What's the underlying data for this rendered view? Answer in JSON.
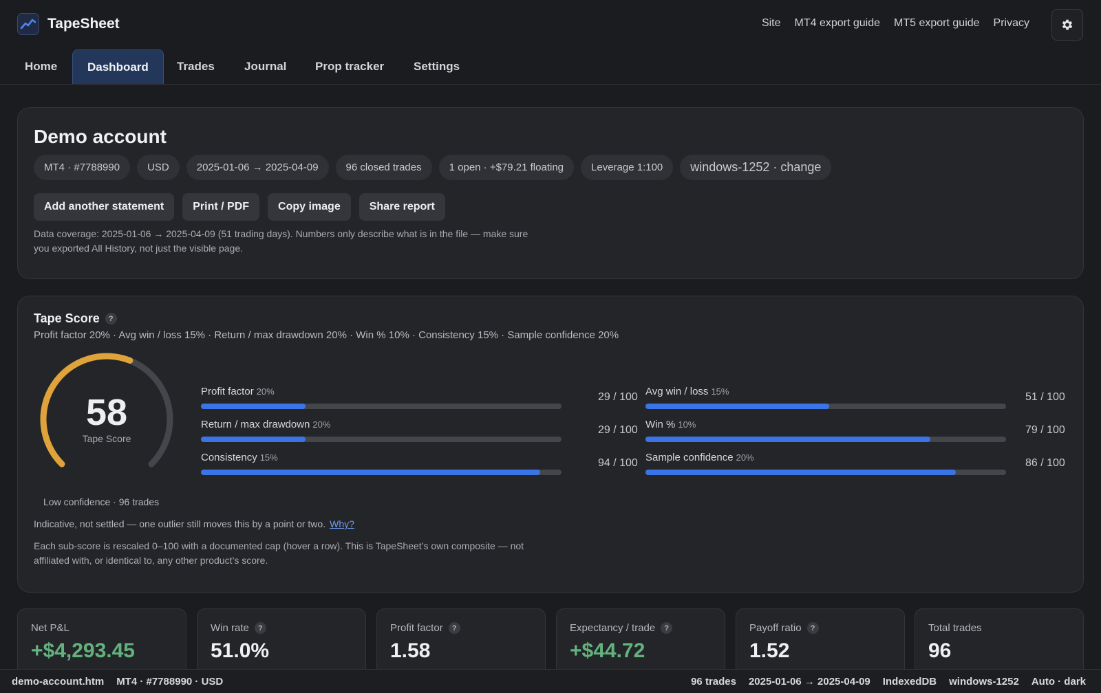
{
  "app": {
    "name": "TapeSheet",
    "logo_icon": "chart-trend-icon"
  },
  "top_links": [
    "Site",
    "MT4 export guide",
    "MT5 export guide",
    "Privacy"
  ],
  "settings_icon": "gear-icon",
  "tabs": [
    {
      "label": "Home",
      "active": false
    },
    {
      "label": "Dashboard",
      "active": true
    },
    {
      "label": "Trades",
      "active": false
    },
    {
      "label": "Journal",
      "active": false
    },
    {
      "label": "Prop tracker",
      "active": false
    },
    {
      "label": "Settings",
      "active": false
    }
  ],
  "account": {
    "title": "Demo account",
    "chips": [
      "MT4 · #7788990",
      "USD",
      "2025-01-06 → 2025-04-09",
      "96 closed trades",
      "1 open · +$79.21 floating",
      "Leverage 1:100",
      "windows-1252 · change"
    ],
    "actions": [
      "Add another statement",
      "Print / PDF",
      "Copy image",
      "Share report"
    ],
    "coverage": "Data coverage: 2025-01-06 → 2025-04-09 (51 trading days). Numbers only describe what is in the file — make sure you exported All History, not just the visible page."
  },
  "tape_score": {
    "title": "Tape Score",
    "weights": "Profit factor 20% · Avg win / loss 15% · Return / max drawdown 20% · Win % 10% · Consistency 15% · Sample confidence 20%",
    "score": "58",
    "score_value": 58,
    "score_label": "Tape Score",
    "gauge_color": "#e0a23a",
    "sub_scores": [
      {
        "name": "Profit factor",
        "weight": "20%",
        "value": "29 / 100",
        "score": 29
      },
      {
        "name": "Avg win / loss",
        "weight": "15%",
        "value": "51 / 100",
        "score": 51
      },
      {
        "name": "Return / max drawdown",
        "weight": "20%",
        "value": "29 / 100",
        "score": 29
      },
      {
        "name": "Win %",
        "weight": "10%",
        "value": "79 / 100",
        "score": 79
      },
      {
        "name": "Consistency",
        "weight": "15%",
        "value": "94 / 100",
        "score": 94
      },
      {
        "name": "Sample confidence",
        "weight": "20%",
        "value": "86 / 100",
        "score": 86
      }
    ],
    "low_confidence": "Low confidence · 96 trades",
    "indicative": "Indicative, not settled — one outlier still moves this by a point or two.",
    "why_link": "Why?",
    "footnote": "Each sub-score is rescaled 0–100 with a documented cap (hover a row). This is TapeSheet’s own composite — not affiliated with, or identical to, any other product’s score."
  },
  "stats": [
    {
      "label": "Net P&L",
      "value": "+$4,293.45",
      "positive": true,
      "help": false
    },
    {
      "label": "Win rate",
      "value": "51.0%",
      "positive": false,
      "help": true
    },
    {
      "label": "Profit factor",
      "value": "1.58",
      "positive": false,
      "help": true
    },
    {
      "label": "Expectancy / trade",
      "value": "+$44.72",
      "positive": true,
      "help": true
    },
    {
      "label": "Payoff ratio",
      "value": "1.52",
      "positive": false,
      "help": true
    },
    {
      "label": "Total trades",
      "value": "96",
      "positive": false,
      "help": false
    }
  ],
  "statusbar": {
    "file": "demo-account.htm",
    "account": "MT4 · #7788990 · USD",
    "trades": "96 trades",
    "range": "2025-01-06 → 2025-04-09",
    "storage": "IndexedDB",
    "encoding": "windows-1252",
    "theme": "Auto · dark"
  },
  "colors": {
    "accent": "#3b74e6",
    "positive": "#63b27e",
    "tab_active_bg": "#223759",
    "link": "#6f9cf2"
  }
}
